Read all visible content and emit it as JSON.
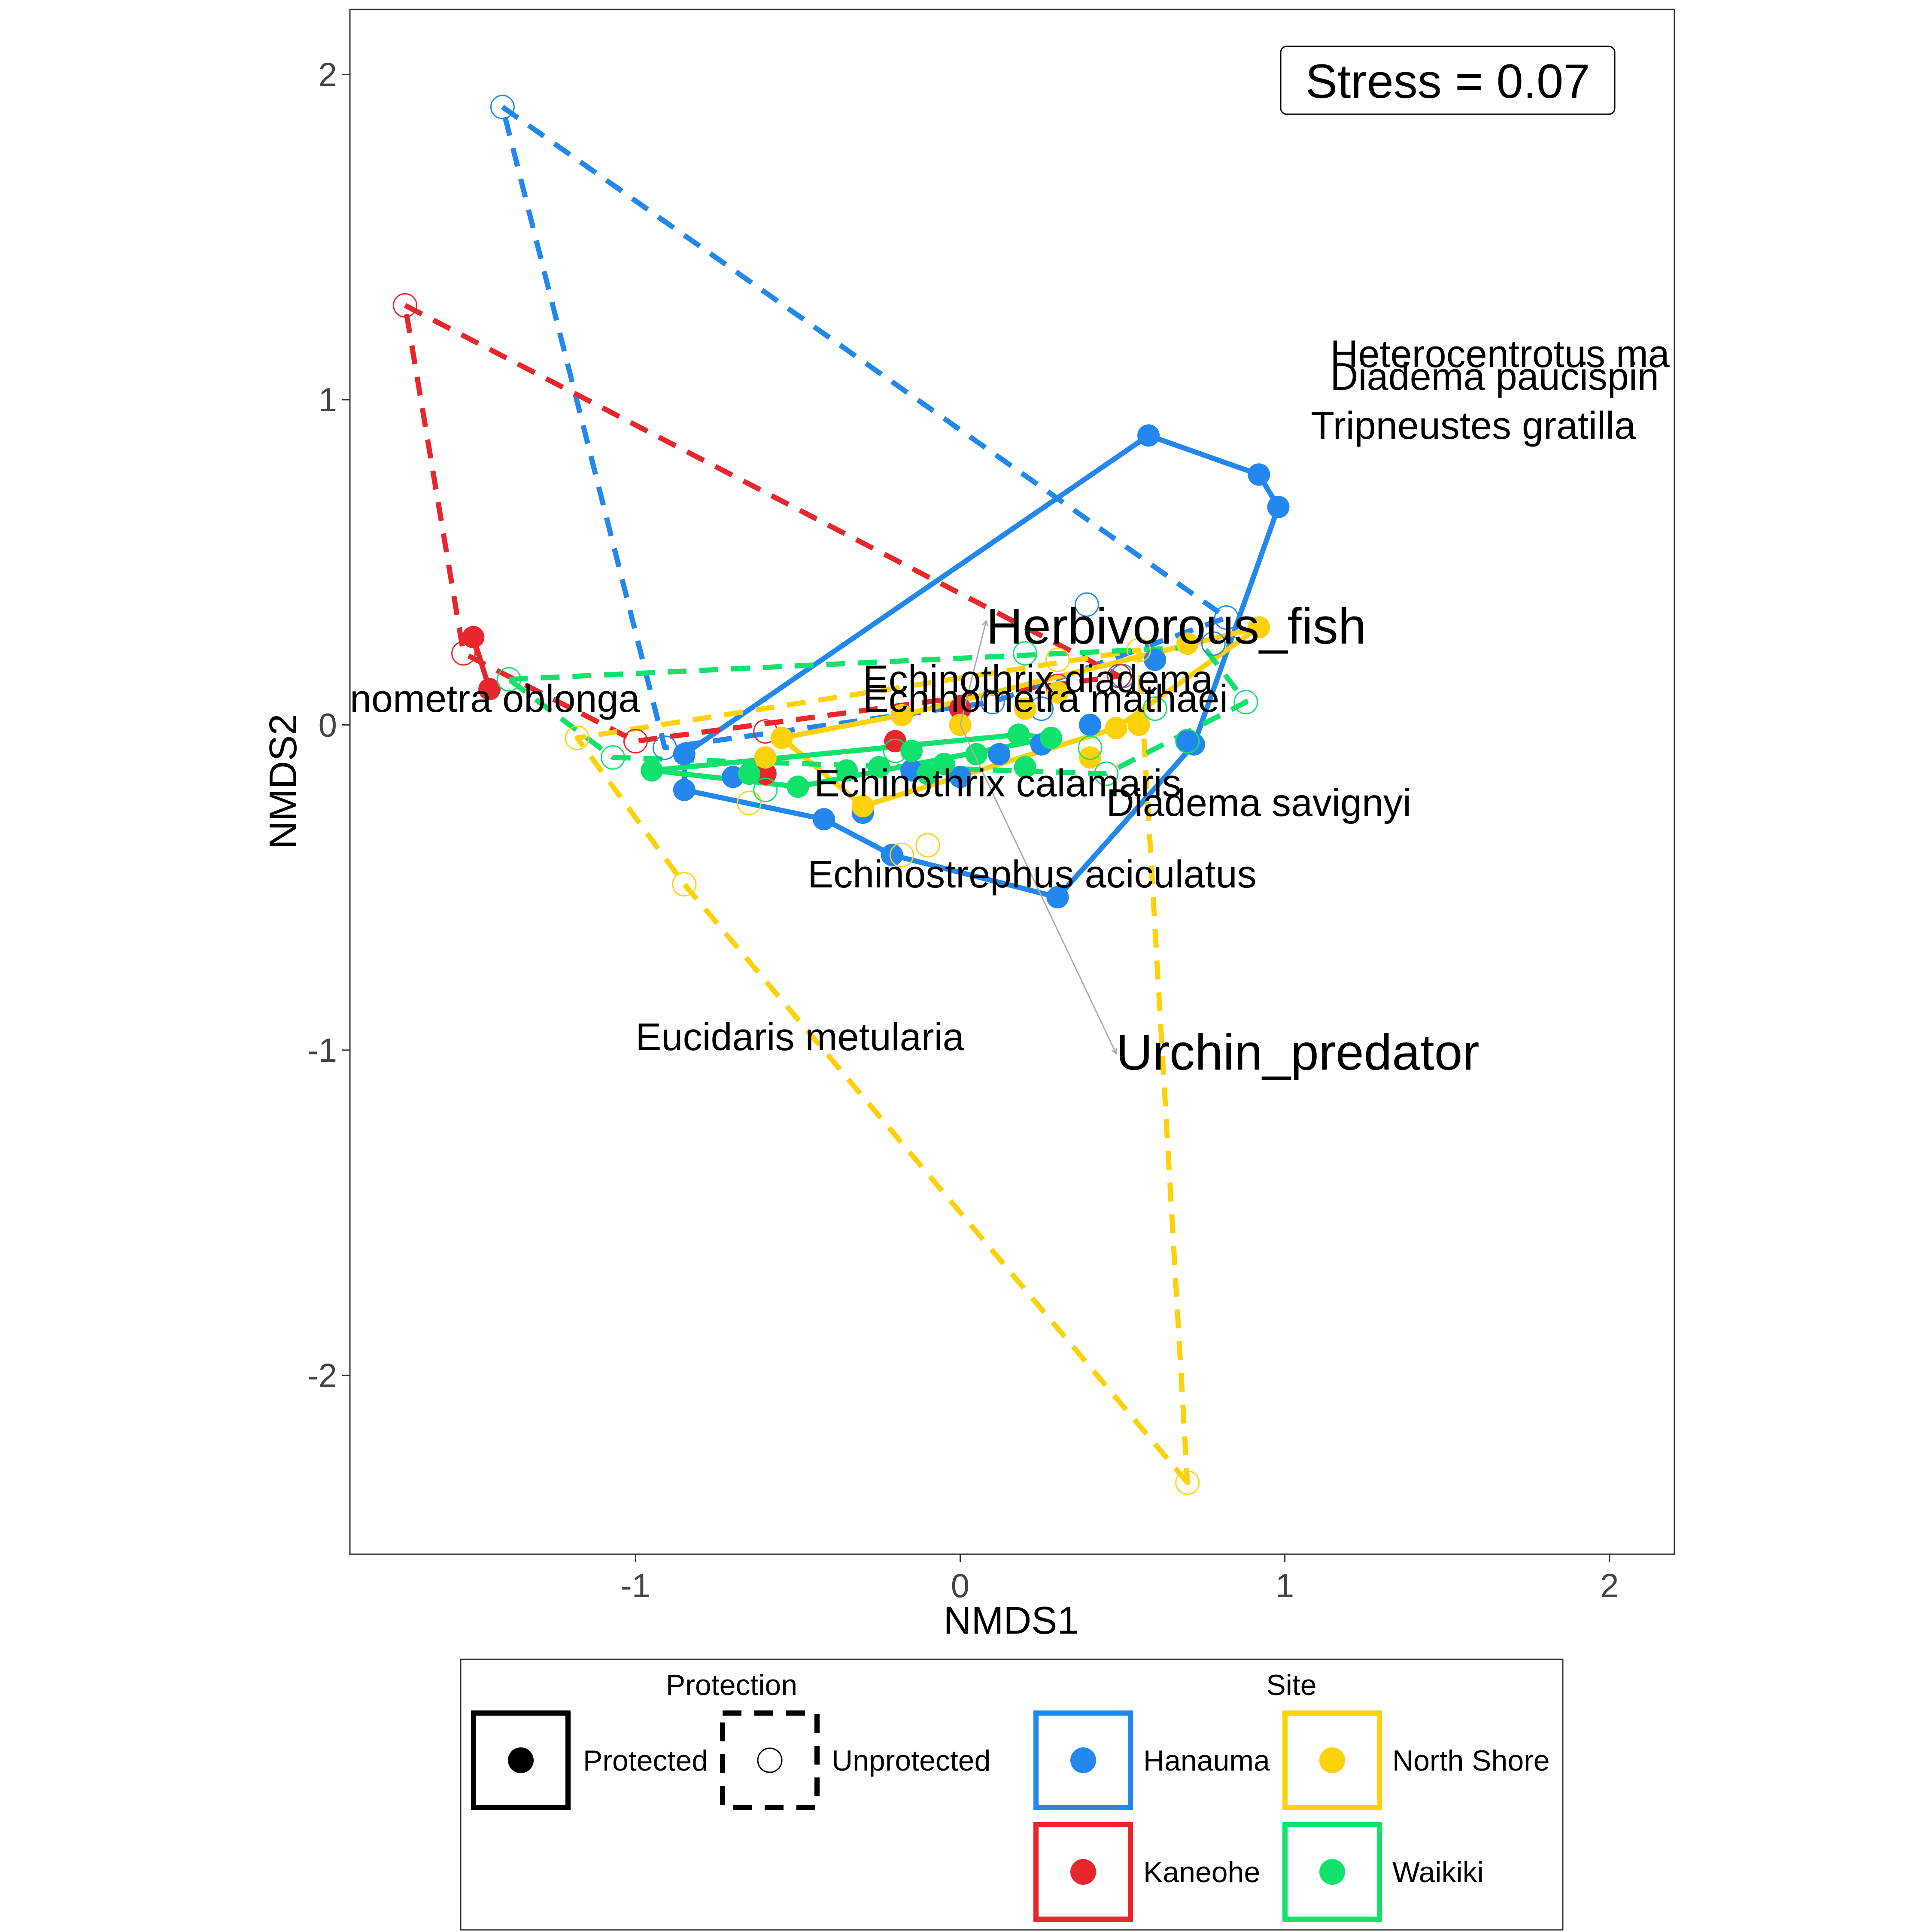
{
  "chart_data": {
    "type": "scatter",
    "title": "",
    "xlabel": "NMDS1",
    "ylabel": "NMDS2",
    "xlim": [
      -1.88,
      2.2
    ],
    "ylim": [
      -2.55,
      2.2
    ],
    "xticks": [
      -1,
      0,
      1,
      2
    ],
    "yticks": [
      -2,
      -1,
      0,
      1,
      2
    ],
    "xtick_labels": [
      "-1",
      "0",
      "1",
      "2"
    ],
    "ytick_labels": [
      "-2",
      "-1",
      "0",
      "1",
      "2"
    ],
    "grid": false,
    "stress_label": "Stress = 0.07",
    "colors": {
      "Hanauma": "#2288EE",
      "Kaneohe": "#E8262B",
      "North Shore": "#FDD20A",
      "Waikiki": "#11E26B"
    },
    "series": [
      {
        "name": "Hanauma",
        "protection": "Protected",
        "points": [
          [
            0.58,
            0.89
          ],
          [
            0.92,
            0.77
          ],
          [
            0.98,
            0.67
          ],
          [
            0.72,
            -0.06
          ],
          [
            0.3,
            -0.53
          ],
          [
            -0.21,
            -0.4
          ],
          [
            -0.42,
            -0.29
          ],
          [
            -0.85,
            -0.2
          ],
          [
            -0.85,
            -0.09
          ],
          [
            -0.3,
            -0.27
          ],
          [
            -0.15,
            -0.14
          ],
          [
            0.0,
            -0.16
          ],
          [
            0.12,
            -0.09
          ],
          [
            0.25,
            -0.06
          ],
          [
            0.4,
            0.0
          ],
          [
            0.6,
            0.2
          ],
          [
            -0.7,
            -0.16
          ],
          [
            0.7,
            -0.05
          ]
        ],
        "hull": [
          [
            0.58,
            0.89
          ],
          [
            0.92,
            0.77
          ],
          [
            0.98,
            0.67
          ],
          [
            0.72,
            -0.06
          ],
          [
            0.3,
            -0.53
          ],
          [
            -0.21,
            -0.4
          ],
          [
            -0.42,
            -0.29
          ],
          [
            -0.85,
            -0.2
          ],
          [
            -0.85,
            -0.09
          ]
        ]
      },
      {
        "name": "Hanauma",
        "protection": "Unprotected",
        "points": [
          [
            -1.41,
            1.9
          ],
          [
            0.82,
            0.33
          ],
          [
            0.39,
            0.37
          ],
          [
            -0.91,
            -0.07
          ],
          [
            0.1,
            0.07
          ],
          [
            0.5,
            0.15
          ],
          [
            0.25,
            0.05
          ],
          [
            0.78,
            0.25
          ]
        ],
        "hull": [
          [
            -1.41,
            1.9
          ],
          [
            0.82,
            0.33
          ],
          [
            0.1,
            0.07
          ],
          [
            -0.91,
            -0.07
          ]
        ]
      },
      {
        "name": "Kaneohe",
        "protection": "Protected",
        "points": [
          [
            -1.5,
            0.27
          ],
          [
            -1.45,
            0.11
          ],
          [
            -0.6,
            -0.15
          ],
          [
            -0.2,
            -0.05
          ],
          [
            0.0,
            0.05
          ]
        ],
        "hull": [
          [
            -1.5,
            0.27
          ],
          [
            -1.45,
            0.11
          ]
        ]
      },
      {
        "name": "Kaneohe",
        "protection": "Unprotected",
        "points": [
          [
            -1.71,
            1.29
          ],
          [
            -1.53,
            0.22
          ],
          [
            -1.0,
            -0.05
          ],
          [
            -0.6,
            -0.02
          ],
          [
            0.49,
            0.15
          ],
          [
            0.3,
            0.12
          ]
        ],
        "hull": [
          [
            -1.71,
            1.29
          ],
          [
            0.49,
            0.15
          ],
          [
            -1.0,
            -0.05
          ],
          [
            -1.53,
            0.22
          ]
        ]
      },
      {
        "name": "North Shore",
        "protection": "Protected",
        "points": [
          [
            0.92,
            0.3
          ],
          [
            0.48,
            -0.01
          ],
          [
            -0.3,
            -0.25
          ],
          [
            -0.55,
            -0.04
          ],
          [
            -0.18,
            0.03
          ],
          [
            0.2,
            0.05
          ],
          [
            0.4,
            -0.1
          ],
          [
            0.7,
            0.25
          ],
          [
            0.55,
            0.0
          ],
          [
            -0.6,
            -0.1
          ],
          [
            0.0,
            0.0
          ],
          [
            0.3,
            0.1
          ]
        ],
        "hull": [
          [
            0.92,
            0.3
          ],
          [
            0.48,
            -0.01
          ],
          [
            -0.3,
            -0.25
          ],
          [
            -0.55,
            -0.04
          ],
          [
            -0.18,
            0.03
          ]
        ]
      },
      {
        "name": "North Shore",
        "protection": "Unprotected",
        "points": [
          [
            0.7,
            -2.33
          ],
          [
            -0.85,
            -0.49
          ],
          [
            -1.18,
            -0.04
          ],
          [
            0.55,
            0.23
          ],
          [
            -0.65,
            -0.24
          ],
          [
            -0.1,
            -0.37
          ],
          [
            -0.18,
            -0.4
          ],
          [
            0.3,
            0.2
          ]
        ],
        "hull": [
          [
            0.7,
            -2.33
          ],
          [
            -0.85,
            -0.49
          ],
          [
            -1.18,
            -0.04
          ],
          [
            0.55,
            0.23
          ]
        ]
      },
      {
        "name": "Waikiki",
        "protection": "Protected",
        "points": [
          [
            -0.95,
            -0.14
          ],
          [
            0.18,
            -0.03
          ],
          [
            0.28,
            -0.04
          ],
          [
            -0.5,
            -0.19
          ],
          [
            -0.35,
            -0.14
          ],
          [
            -0.15,
            -0.08
          ],
          [
            -0.05,
            -0.12
          ],
          [
            0.05,
            -0.09
          ],
          [
            0.2,
            -0.13
          ],
          [
            -0.1,
            -0.15
          ],
          [
            -0.25,
            -0.13
          ],
          [
            -0.65,
            -0.15
          ]
        ],
        "hull": [
          [
            -0.95,
            -0.14
          ],
          [
            0.18,
            -0.03
          ],
          [
            0.28,
            -0.04
          ],
          [
            -0.5,
            -0.19
          ]
        ]
      },
      {
        "name": "Waikiki",
        "protection": "Unprotected",
        "points": [
          [
            -1.39,
            0.14
          ],
          [
            0.88,
            0.07
          ],
          [
            0.45,
            -0.15
          ],
          [
            -1.07,
            -0.1
          ],
          [
            0.2,
            0.22
          ],
          [
            0.7,
            -0.05
          ],
          [
            0.4,
            -0.07
          ],
          [
            0.6,
            0.05
          ],
          [
            -0.6,
            -0.2
          ],
          [
            -0.2,
            -0.08
          ]
        ],
        "hull": [
          [
            -1.39,
            0.14
          ],
          [
            0.75,
            0.24
          ],
          [
            0.88,
            0.07
          ],
          [
            0.45,
            -0.15
          ],
          [
            -1.07,
            -0.1
          ]
        ]
      }
    ],
    "species_labels": [
      {
        "text": "Heterocentrotus ma",
        "x": 1.14,
        "y": 1.1
      },
      {
        "text": "Diadema paucispin",
        "x": 1.14,
        "y": 1.03
      },
      {
        "text": "Tripneustes gratilla",
        "x": 1.08,
        "y": 0.88
      },
      {
        "text": "nometra oblonga",
        "x": -1.88,
        "y": 0.04
      },
      {
        "text": "Echinothrix diadema",
        "x": -0.3,
        "y": 0.1
      },
      {
        "text": "Echinometra mathaei",
        "x": -0.3,
        "y": 0.04
      },
      {
        "text": "Echinothrix calamaris",
        "x": -0.45,
        "y": -0.22
      },
      {
        "text": "Diadema savignyi",
        "x": 0.45,
        "y": -0.28
      },
      {
        "text": "Echinostrephus aciculatus",
        "x": -0.47,
        "y": -0.5
      },
      {
        "text": "Eucidaris metularia",
        "x": -1.0,
        "y": -1.0
      }
    ],
    "env_vectors": [
      {
        "text": "Herbivorous_fish",
        "x0": 0.0,
        "y0": 0.0,
        "x1": 0.08,
        "y1": 0.32,
        "lx": 0.08,
        "ly": 0.25
      },
      {
        "text": "Urchin_predator",
        "x0": 0.0,
        "y0": 0.0,
        "x1": 0.48,
        "y1": -1.01,
        "lx": 0.48,
        "ly": -1.06
      }
    ],
    "legend": {
      "position": "bottom",
      "protection_title": "Protection",
      "protection_items": [
        {
          "label": "Protected",
          "linestyle": "solid",
          "marker": "filled"
        },
        {
          "label": "Unprotected",
          "linestyle": "dashed",
          "marker": "open"
        }
      ],
      "site_title": "Site",
      "site_items": [
        {
          "label": "Hanauma",
          "color": "#2288EE"
        },
        {
          "label": "North Shore",
          "color": "#FDD20A"
        },
        {
          "label": "Kaneohe",
          "color": "#E8262B"
        },
        {
          "label": "Waikiki",
          "color": "#11E26B"
        }
      ]
    }
  }
}
